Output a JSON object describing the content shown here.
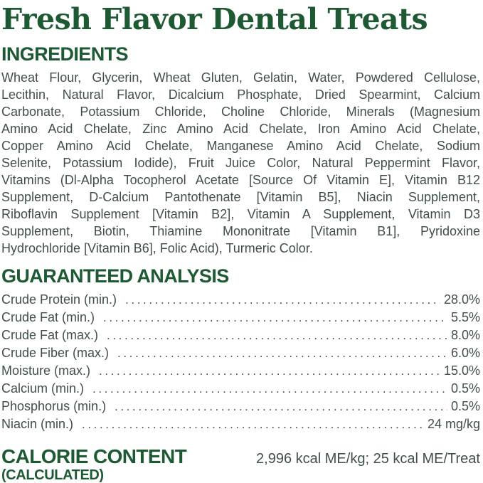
{
  "colors": {
    "heading_green": "#1d5a33",
    "body_text": "#405049",
    "background": "#ffffff"
  },
  "title": "Fresh Flavor Dental Treats",
  "ingredients": {
    "heading": "INGREDIENTS",
    "lines": [
      "Wheat Flour, Glycerin, Wheat Gluten, Gelatin, Water, Powdered Cellulose,",
      "Lecithin, Natural Flavor, Dicalcium Phosphate, Dried Spearmint, Calcium",
      "Carbonate, Potassium Chloride, Choline Chloride, Minerals (Magnesium",
      "Amino Acid Chelate, Zinc Amino Acid Chelate, Iron Amino Acid Chelate,",
      "Copper Amino Acid Chelate, Manganese Amino Acid Chelate, Sodium",
      "Selenite, Potassium Iodide), Fruit Juice Color, Natural Peppermint Flavor,",
      "Vitamins (Dl-Alpha Tocopherol Acetate [Source Of Vitamin E], Vitamin B12",
      "Supplement, D-Calcium Pantothenate [Vitamin B5], Niacin Supplement,",
      "Riboflavin Supplement [Vitamin B2], Vitamin A Supplement, Vitamin D3",
      "Supplement, Biotin, Thiamine Mononitrate [Vitamin B1], Pyridoxine",
      "Hydrochloride [Vitamin B6], Folic Acid), Turmeric Color."
    ]
  },
  "analysis": {
    "heading": "GUARANTEED ANALYSIS",
    "rows": [
      {
        "label": "Crude Protein (min.)",
        "value": "28.0%"
      },
      {
        "label": "Crude Fat (min.)",
        "value": "5.5%"
      },
      {
        "label": "Crude Fat (max.)",
        "value": "8.0%"
      },
      {
        "label": "Crude Fiber (max.)",
        "value": "6.0%"
      },
      {
        "label": "Moisture (max.)",
        "value": "15.0%"
      },
      {
        "label": "Calcium (min.)",
        "value": "0.5%"
      },
      {
        "label": "Phosphorus (min.)",
        "value": "0.5%"
      },
      {
        "label": "Niacin (min.)",
        "value": "24 mg/kg"
      }
    ]
  },
  "calories": {
    "heading": "CALORIE CONTENT",
    "subheading": "(CALCULATED)",
    "value": "2,996 kcal ME/kg; 25 kcal ME/Treat"
  }
}
